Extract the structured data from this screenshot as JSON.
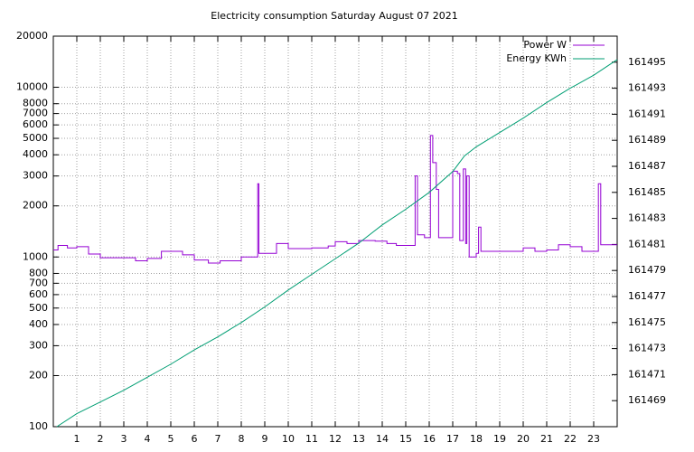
{
  "chart_data": {
    "type": "line",
    "title": "Electricity consumption Saturday August 07 2021",
    "xlim": [
      0,
      24
    ],
    "xticks": [
      1,
      2,
      3,
      4,
      5,
      6,
      7,
      8,
      9,
      10,
      11,
      12,
      13,
      14,
      15,
      16,
      17,
      18,
      19,
      20,
      21,
      22,
      23
    ],
    "ylim": [
      100,
      20000
    ],
    "ylog": true,
    "yticks": [
      100,
      200,
      300,
      400,
      500,
      600,
      700,
      800,
      1000,
      2000,
      3000,
      4000,
      5000,
      6000,
      7000,
      8000,
      10000,
      20000
    ],
    "y2lim": [
      161467,
      161497
    ],
    "y2ticks": [
      161469,
      161471,
      161473,
      161475,
      161477,
      161479,
      161481,
      161483,
      161485,
      161487,
      161489,
      161491,
      161493,
      161495
    ],
    "grid": true,
    "legend": "top-right",
    "series": [
      {
        "name": "Power W",
        "color": "#9400d3",
        "steps": true,
        "x": [
          0,
          0.2,
          0.6,
          1,
          1.5,
          2,
          3.5,
          4,
          4.6,
          5.5,
          6,
          6.6,
          7.1,
          8,
          8.7,
          8.75,
          9.5,
          10,
          11,
          11.7,
          12,
          12.5,
          13,
          13.7,
          14.2,
          14.6,
          15.4,
          15.5,
          15.8,
          16.05,
          16.15,
          16.3,
          16.4,
          17,
          17.2,
          17.3,
          17.45,
          17.55,
          17.6,
          17.7,
          18,
          18.1,
          18.2,
          19,
          20,
          20.5,
          21,
          21.5,
          22,
          22.5,
          23.2,
          23.3,
          24
        ],
        "values": [
          1100,
          1170,
          1130,
          1150,
          1040,
          990,
          950,
          980,
          1080,
          1030,
          960,
          920,
          950,
          1000,
          2700,
          1050,
          1200,
          1120,
          1130,
          1160,
          1230,
          1200,
          1250,
          1240,
          1200,
          1170,
          3000,
          1350,
          1300,
          5200,
          3600,
          2500,
          1300,
          3200,
          3100,
          1250,
          3300,
          1200,
          3000,
          1000,
          1050,
          1500,
          1080,
          1080,
          1130,
          1080,
          1100,
          1180,
          1150,
          1080,
          2700,
          1180,
          1180
        ]
      },
      {
        "name": "Energy KWh",
        "color": "#009e73",
        "axis": "y2",
        "x": [
          0.15,
          1,
          2,
          3,
          4,
          5,
          6,
          7,
          8,
          9,
          10,
          11,
          12,
          13,
          14,
          15,
          16,
          17,
          17.5,
          18,
          19,
          20,
          21,
          22,
          23,
          24
        ],
        "values": [
          161467.0,
          161468.0,
          161468.9,
          161469.8,
          161470.8,
          161471.8,
          161472.9,
          161473.9,
          161475.0,
          161476.2,
          161477.5,
          161478.7,
          161479.9,
          161481.1,
          161482.5,
          161483.7,
          161485.0,
          161486.6,
          161487.8,
          161488.5,
          161489.6,
          161490.7,
          161491.9,
          161493.0,
          161494.0,
          161495.2
        ]
      }
    ]
  }
}
